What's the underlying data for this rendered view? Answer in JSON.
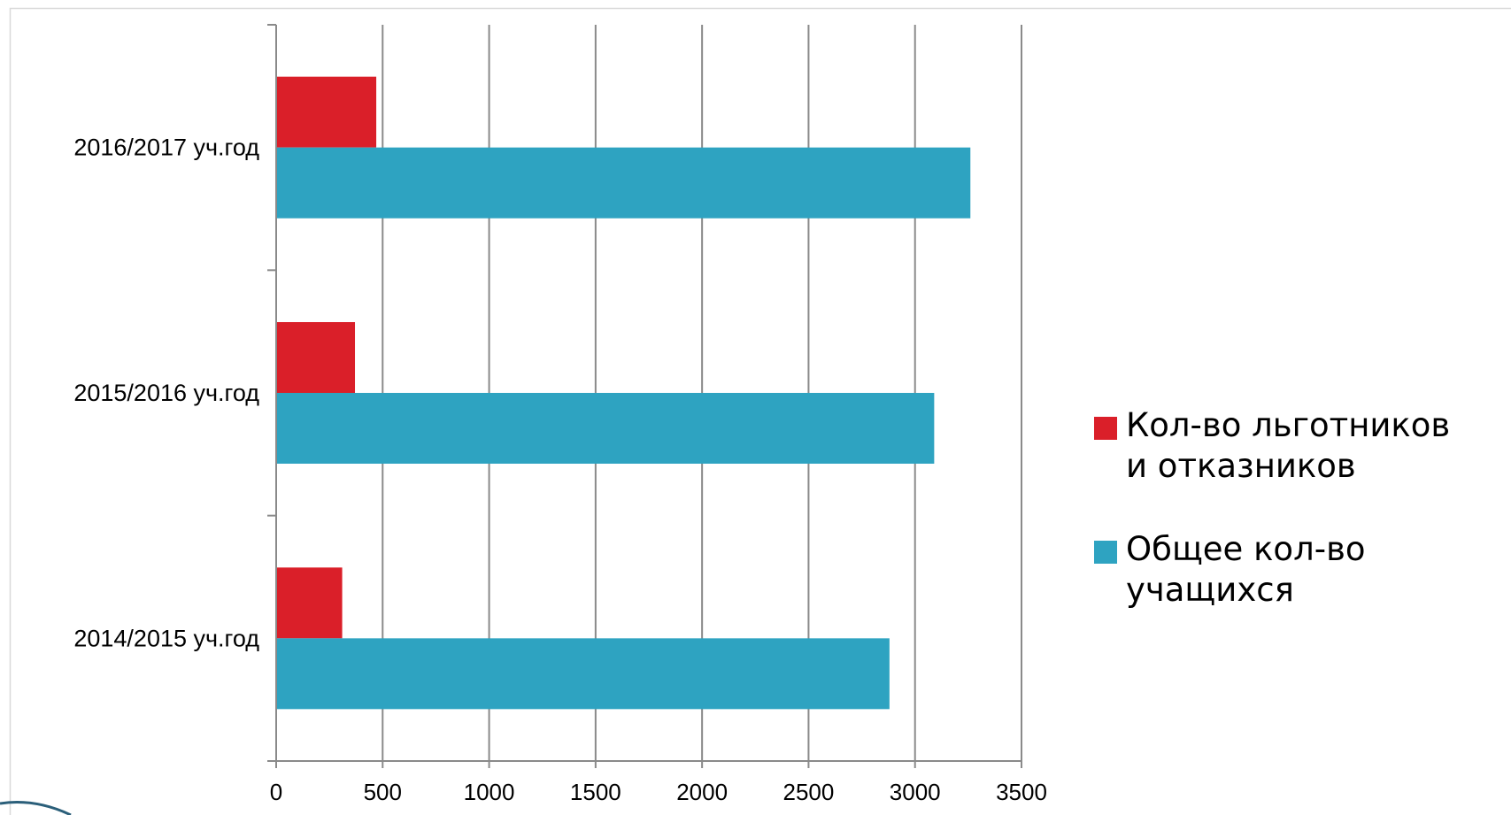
{
  "chart_data": {
    "type": "bar",
    "orientation": "horizontal",
    "categories": [
      "2014/2015 уч.год",
      "2015/2016 уч.год",
      "2016/2017 уч.год"
    ],
    "series": [
      {
        "name": "Общее кол-во учащихся",
        "color": "#2EA3C1",
        "values": [
          2880,
          3090,
          3260
        ]
      },
      {
        "name": "Кол-во льготников и отказников",
        "color": "#DA1F29",
        "values": [
          310,
          370,
          470
        ]
      }
    ],
    "x_ticks": [
      "0",
      "500",
      "1000",
      "1500",
      "2000",
      "2500",
      "3000",
      "3500"
    ],
    "xlim": [
      0,
      3500
    ],
    "grid": true,
    "legend_position": "right",
    "legend": [
      {
        "label_line1": "Кол-во льготников",
        "label_line2": "и отказников",
        "color": "#DA1F29"
      },
      {
        "label_line1": "Общее кол-во",
        "label_line2": "учащихся",
        "color": "#2EA3C1"
      }
    ]
  }
}
